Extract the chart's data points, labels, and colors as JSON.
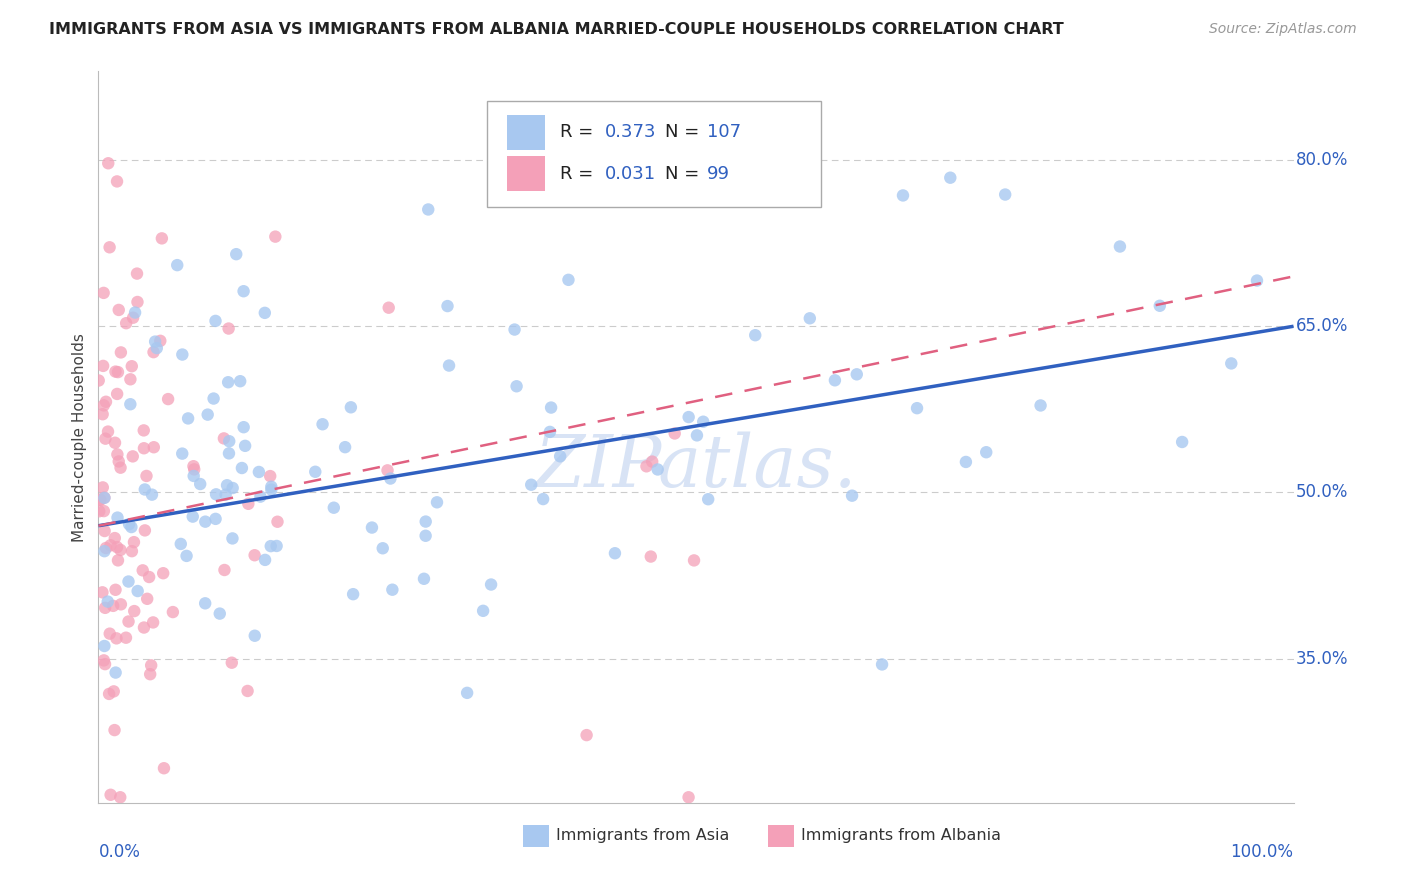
{
  "title": "IMMIGRANTS FROM ASIA VS IMMIGRANTS FROM ALBANIA MARRIED-COUPLE HOUSEHOLDS CORRELATION CHART",
  "source": "Source: ZipAtlas.com",
  "ylabel": "Married-couple Households",
  "asia_R": 0.373,
  "asia_N": 107,
  "albania_R": 0.031,
  "albania_N": 99,
  "asia_color": "#A8C8F0",
  "albania_color": "#F4A0B8",
  "asia_line_color": "#3060C0",
  "albania_line_color": "#E06080",
  "legend_asia_label": "Immigrants from Asia",
  "legend_albania_label": "Immigrants from Albania",
  "watermark_text": "ZIPatlas.",
  "xlim": [
    0.0,
    1.0
  ],
  "ylim": [
    0.22,
    0.88
  ],
  "ytick_vals": [
    0.35,
    0.5,
    0.65,
    0.8
  ],
  "ytick_labels": [
    "35.0%",
    "50.0%",
    "65.0%",
    "80.0%"
  ],
  "asia_line_x0": 0.0,
  "asia_line_y0": 0.47,
  "asia_line_x1": 1.0,
  "asia_line_y1": 0.65,
  "albania_line_x0": 0.0,
  "albania_line_y0": 0.47,
  "albania_line_x1": 1.0,
  "albania_line_y1": 0.695
}
